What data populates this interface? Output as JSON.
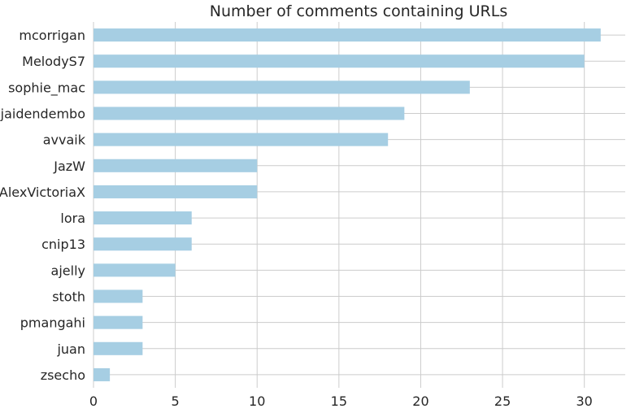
{
  "chart_data": {
    "type": "bar",
    "orientation": "horizontal",
    "title": "Number of comments containing URLs",
    "xlabel": "",
    "ylabel": "",
    "categories": [
      "mcorrigan",
      "MelodyS7",
      "sophie_mac",
      "jaidendembo",
      "avvaik",
      "JazW",
      "AlexVictoriaX",
      "lora",
      "cnip13",
      "ajelly",
      "stoth",
      "pmangahi",
      "juan",
      "zsecho"
    ],
    "values": [
      31,
      30,
      23,
      19,
      18,
      10,
      10,
      6,
      6,
      5,
      3,
      3,
      3,
      1
    ],
    "xlim": [
      0,
      32.5
    ],
    "xticks": [
      0,
      5,
      10,
      15,
      20,
      25,
      30
    ],
    "xtick_labels": [
      "0",
      "5",
      "10",
      "15",
      "20",
      "25",
      "30"
    ],
    "grid": true,
    "legend": "none",
    "colors": {
      "bar": "#a6cee3",
      "grid": "#cccccc",
      "text": "#262626"
    }
  }
}
